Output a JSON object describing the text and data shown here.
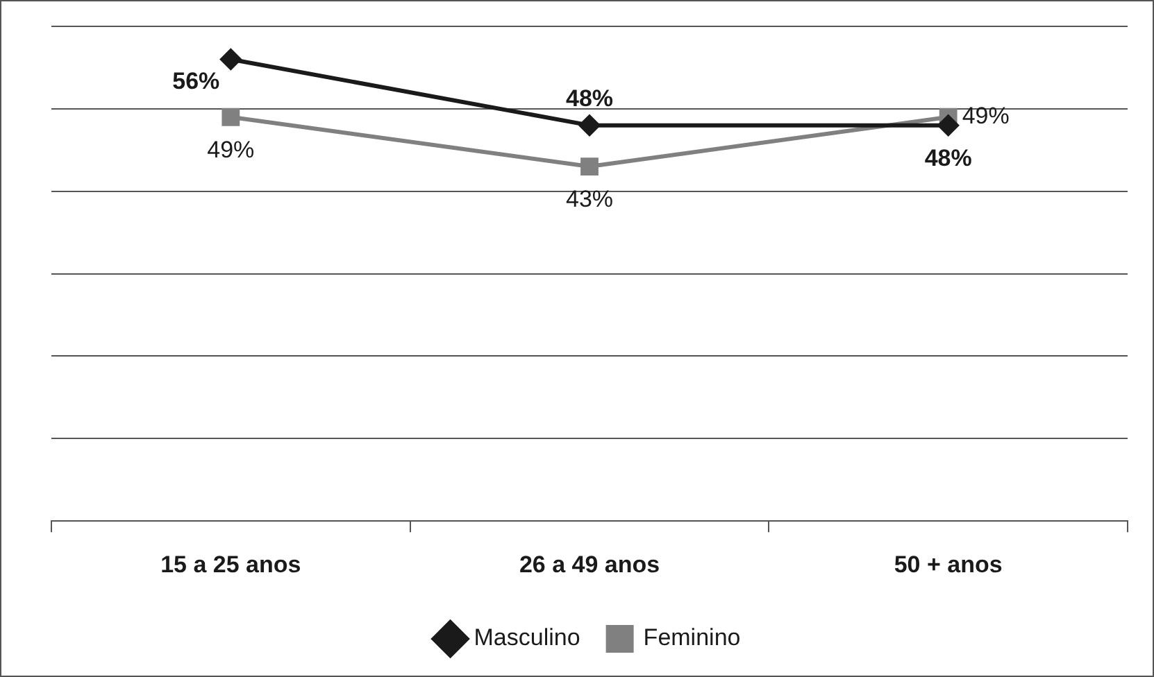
{
  "chart_data": {
    "type": "line",
    "categories": [
      "15 a 25 anos",
      "26 a 49 anos",
      "50 + anos"
    ],
    "series": [
      {
        "name": "Masculino",
        "color": "#1a1a1a",
        "marker": "diamond",
        "values": [
          56,
          48,
          48
        ],
        "value_labels": [
          "56%",
          "48%",
          "48%"
        ]
      },
      {
        "name": "Feminino",
        "color": "#808080",
        "marker": "square",
        "values": [
          49,
          43,
          49
        ],
        "value_labels": [
          "49%",
          "43%",
          "49%"
        ]
      }
    ],
    "ylim": [
      0,
      60
    ],
    "yticks": [
      {
        "value": 0,
        "label": null
      },
      {
        "value": 10,
        "label": null
      },
      {
        "value": 20,
        "label": null
      },
      {
        "value": 30,
        "label": null
      },
      {
        "value": 40,
        "label": null
      },
      {
        "value": 50,
        "label": null
      },
      {
        "value": 60,
        "label": null
      }
    ],
    "tick_labels": "x",
    "grid": "y",
    "legend": "bottom",
    "line_style": "solid"
  }
}
